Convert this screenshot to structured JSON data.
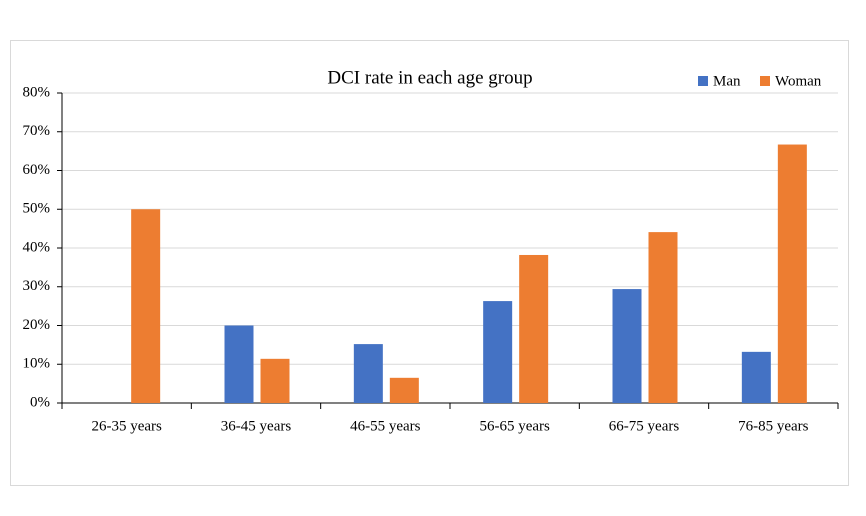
{
  "chart_data": {
    "type": "bar",
    "title": "DCI rate in each age group",
    "categories": [
      "26-35 years",
      "36-45 years",
      "46-55 years",
      "56-65 years",
      "66-75 years",
      "76-85 years"
    ],
    "series": [
      {
        "name": "Man",
        "color": "#4472c4",
        "values": [
          0,
          20,
          15.2,
          26.3,
          29.4,
          13.2
        ]
      },
      {
        "name": "Woman",
        "color": "#ed7d31",
        "values": [
          50,
          11.4,
          6.5,
          38.2,
          44.1,
          66.7
        ]
      }
    ],
    "ylim": [
      0,
      80
    ],
    "yticks": [
      {
        "value": 0,
        "label": "0%"
      },
      {
        "value": 10,
        "label": "10%"
      },
      {
        "value": 20,
        "label": "20%"
      },
      {
        "value": 30,
        "label": "30%"
      },
      {
        "value": 40,
        "label": "40%"
      },
      {
        "value": 50,
        "label": "50%"
      },
      {
        "value": 60,
        "label": "60%"
      },
      {
        "value": 70,
        "label": "70%"
      },
      {
        "value": 80,
        "label": "80%"
      }
    ],
    "grid": true,
    "legend": "top-right"
  }
}
